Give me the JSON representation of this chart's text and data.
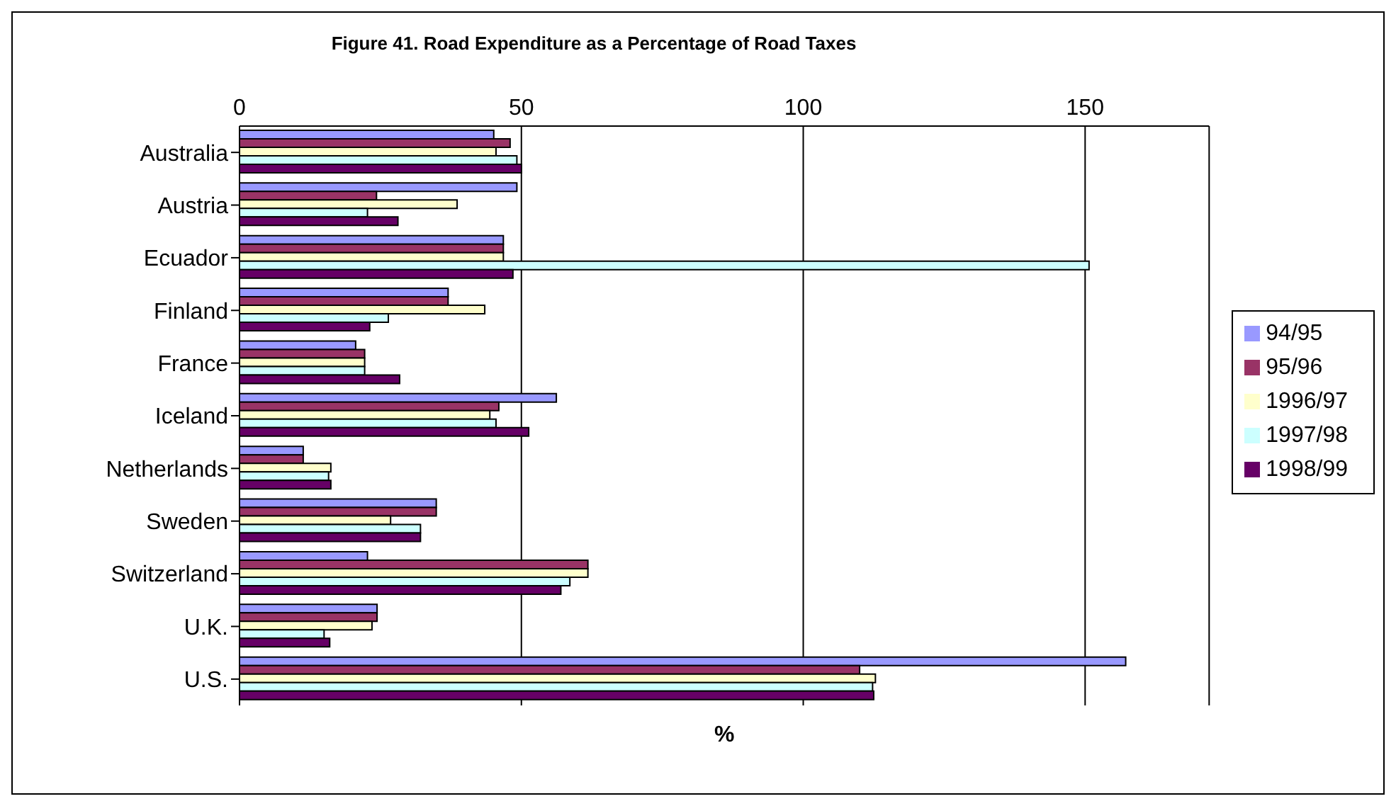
{
  "chart_data": {
    "type": "bar",
    "orientation": "horizontal",
    "title": "Figure 41. Road Expenditure as a Percentage of Road Taxes",
    "xlabel": "%",
    "categories": [
      "Australia",
      "Austria",
      "Ecuador",
      "Finland",
      "France",
      "Iceland",
      "Netherlands",
      "Sweden",
      "Switzerland",
      "U.K.",
      "U.S."
    ],
    "series": [
      {
        "name": "94/95",
        "color": "#9999ff",
        "values": [
          45.1,
          49.2,
          46.8,
          37,
          20.6,
          56.2,
          11.3,
          34.9,
          22.7,
          24.4,
          157.2
        ]
      },
      {
        "name": "95/96",
        "color": "#993366",
        "values": [
          48,
          24.3,
          46.8,
          37,
          22.2,
          46,
          11.3,
          34.9,
          61.8,
          24.4,
          110
        ]
      },
      {
        "name": "1996/97",
        "color": "#ffffcc",
        "values": [
          45.5,
          38.6,
          46.8,
          43.5,
          22.2,
          44.4,
          16.2,
          26.8,
          61.8,
          23.5,
          112.8
        ]
      },
      {
        "name": "1997/98",
        "color": "#ccffff",
        "values": [
          49.2,
          22.7,
          150.7,
          26.4,
          22.2,
          45.5,
          15.8,
          32.1,
          58.6,
          15,
          112.3
        ]
      },
      {
        "name": "1998/99",
        "color": "#660066",
        "values": [
          50,
          28.1,
          48.5,
          23.1,
          28.4,
          51.3,
          16.2,
          32.1,
          57,
          16,
          112.5
        ]
      }
    ],
    "xlim": [
      0,
      172
    ],
    "xticks": [
      0,
      50,
      100,
      150
    ],
    "grid": "x",
    "legend": "right"
  }
}
